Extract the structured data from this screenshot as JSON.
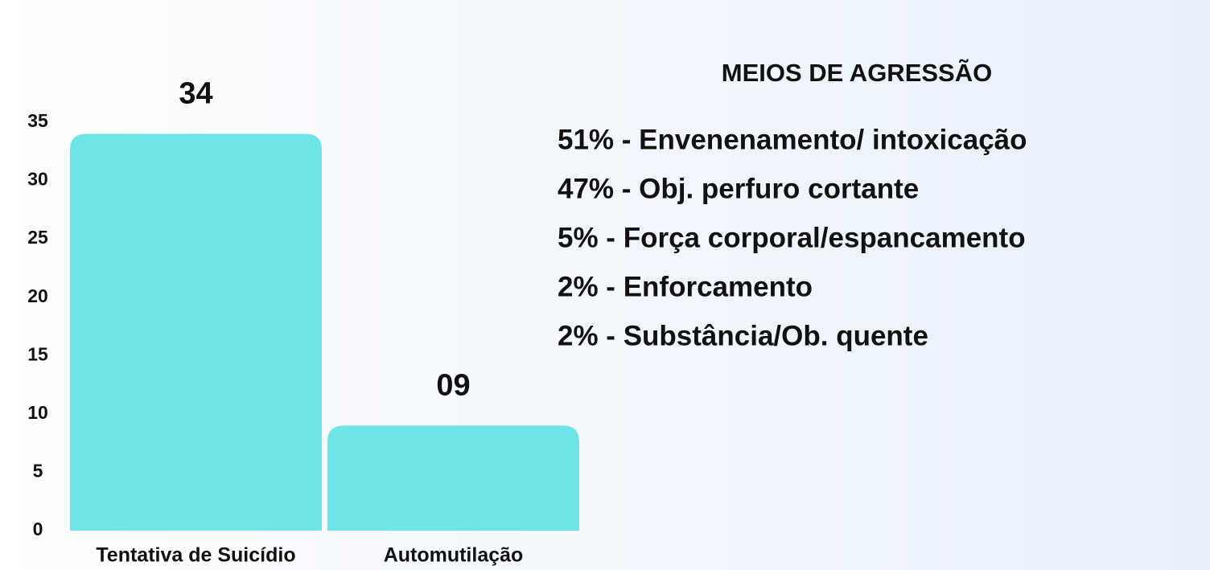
{
  "chart_data": {
    "type": "bar",
    "categories": [
      "Tentativa de Suicídio",
      "Automutilação"
    ],
    "values": [
      34,
      9
    ],
    "value_labels": [
      "34",
      "09"
    ],
    "color": "#6ce4e8",
    "ylim": [
      0,
      35
    ],
    "yticks": [
      0,
      5,
      10,
      15,
      20,
      25,
      30,
      35
    ]
  },
  "panel": {
    "title": "MEIOS DE AGRESSÃO",
    "items": [
      "51% - Envenenamento/ intoxicação",
      "47% - Obj. perfuro cortante",
      "5% - Força corporal/espancamento",
      "2% - Enforcamento",
      "2% - Substância/Ob. quente"
    ]
  }
}
